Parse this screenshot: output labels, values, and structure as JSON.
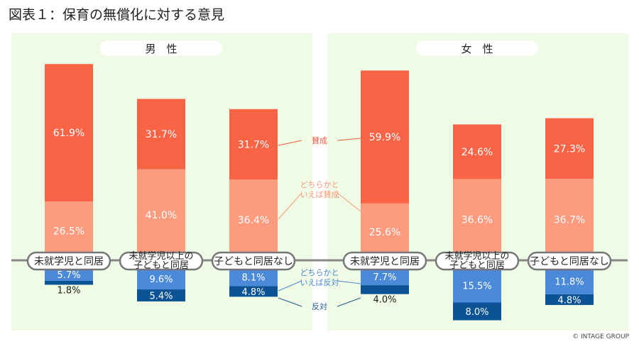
{
  "title": "図表１：保育の無償化に対する意見",
  "copyright": "© INTAGE GROUP",
  "chart_data": {
    "type": "bar",
    "stacked": true,
    "categories": [
      "未就学児と同居",
      "未就学児以上の子どもと同居",
      "子どもと同居なし"
    ],
    "category_lines": [
      [
        "未就学児と同居"
      ],
      [
        "未就学児以上の",
        "子どもと同居"
      ],
      [
        "子どもと同居なし"
      ]
    ],
    "panels": [
      {
        "name": "男　性",
        "series": [
          {
            "name": "賛成",
            "values": [
              61.9,
              31.7,
              31.7
            ]
          },
          {
            "name": "どちらかといえば賛成",
            "values": [
              26.5,
              41.0,
              36.4
            ]
          },
          {
            "name": "どちらかといえば反対",
            "values": [
              5.7,
              9.6,
              8.1
            ]
          },
          {
            "name": "反対",
            "values": [
              1.8,
              5.4,
              4.8
            ]
          }
        ]
      },
      {
        "name": "女　性",
        "series": [
          {
            "name": "賛成",
            "values": [
              59.9,
              24.6,
              27.3
            ]
          },
          {
            "name": "どちらかといえば賛成",
            "values": [
              25.6,
              36.6,
              36.7
            ]
          },
          {
            "name": "どちらかといえば反対",
            "values": [
              7.7,
              15.5,
              11.8
            ]
          },
          {
            "name": "反対",
            "values": [
              4.0,
              8.0,
              4.8
            ]
          }
        ]
      }
    ],
    "series_labels": [
      [
        "賛成"
      ],
      [
        "どちらかと",
        "いえば賛成"
      ],
      [
        "どちらかと",
        "いえば反対"
      ],
      [
        "反対"
      ]
    ],
    "colors": [
      "#f96446",
      "#fd9b7f",
      "#4b8ad8",
      "#0b5394"
    ],
    "label_colors": [
      "#f05a3c",
      "#f59a78",
      "#4b86cc",
      "#1f5b95"
    ],
    "panel_bg": "#f0fbe6"
  }
}
